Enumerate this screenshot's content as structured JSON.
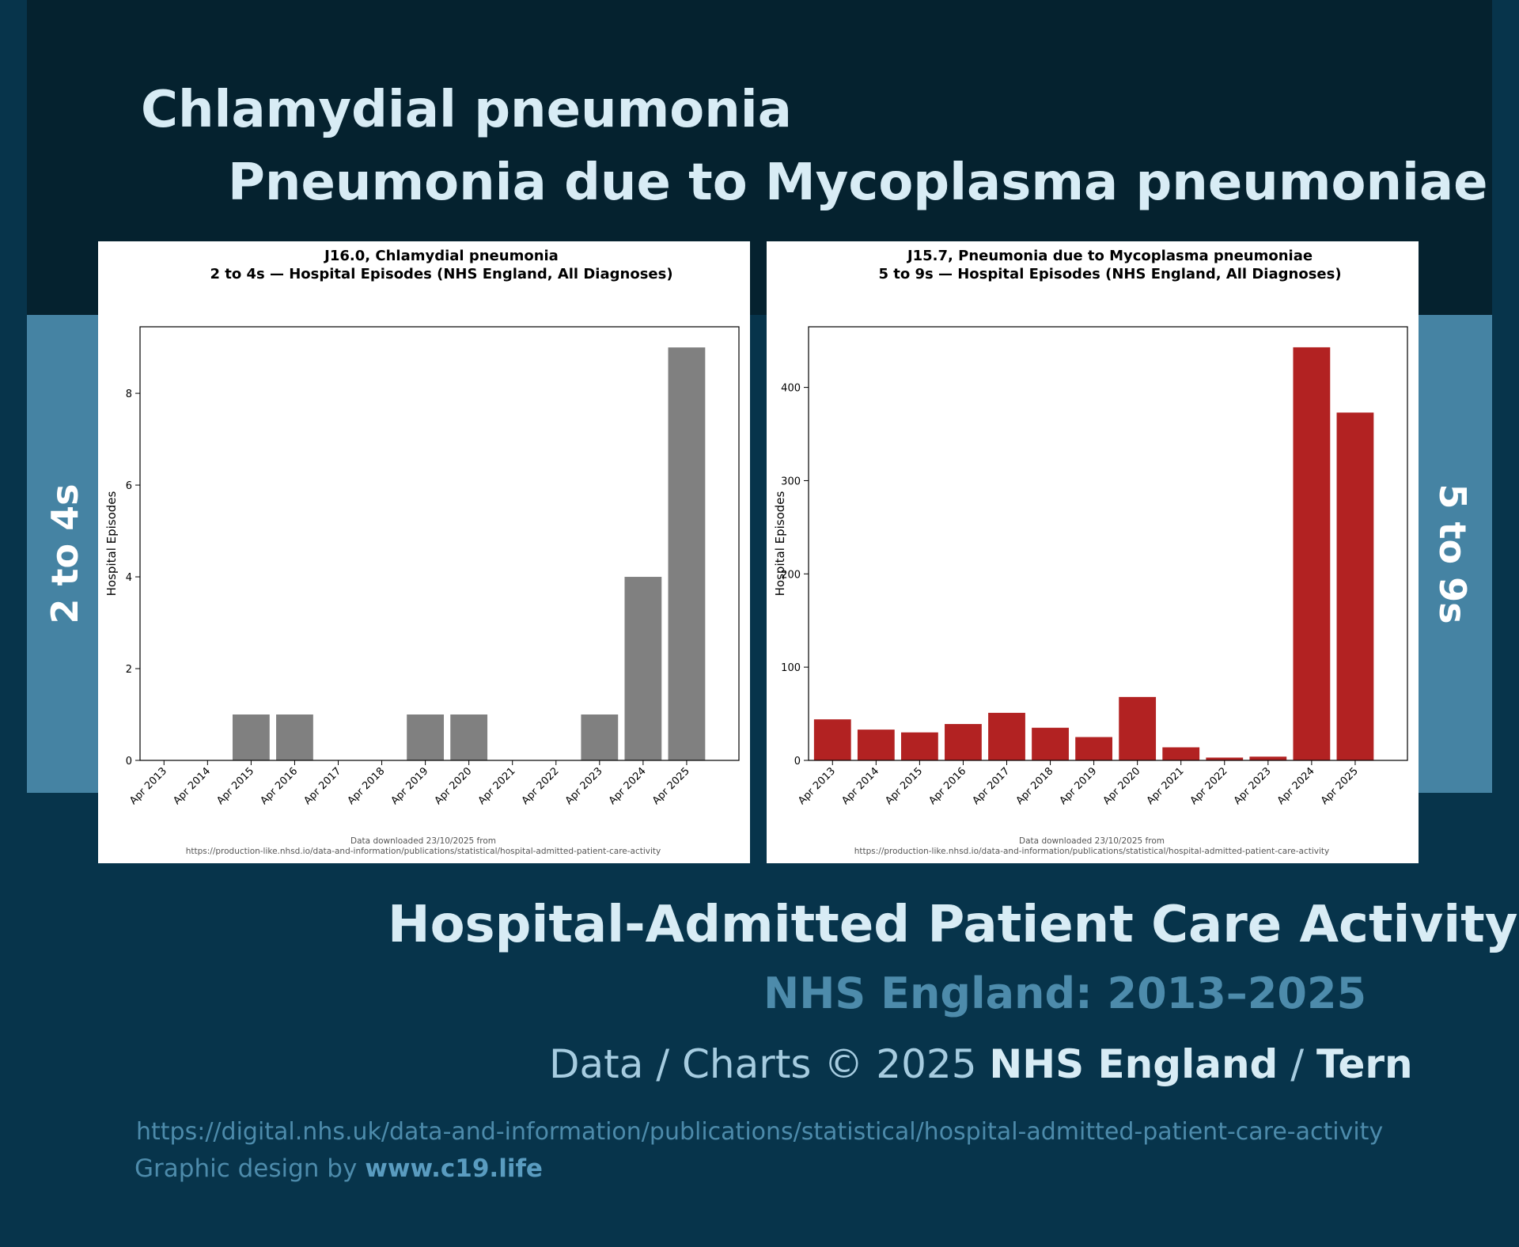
{
  "header": {
    "title_line1": "Chlamydial pneumonia",
    "title_line2": "Pneumonia due to Mycoplasma pneumoniae"
  },
  "side_labels": {
    "left": "2 to 4s",
    "right": "5 to 9s"
  },
  "footer": {
    "title": "Hospital-Admitted Patient Care Activity",
    "range": "NHS England: 2013–2025",
    "credit_prefix": "Data / Charts © 2025",
    "credit_org": "NHS England",
    "credit_sep": "/",
    "credit_author": "Tern",
    "source_url": "https://digital.nhs.uk/data-and-information/publications/statistical/hospital-admitted-patient-care-activity",
    "design_prefix": "Graphic design by",
    "design_site": "www.c19.life"
  },
  "colors": {
    "background": "#07344b",
    "top_band": "#05222f",
    "side_band": "#4583a3",
    "bar_left": "#808080",
    "bar_right": "#b22222"
  },
  "chart_data": [
    {
      "type": "bar",
      "title": "J16.0,  Chlamydial pneumonia",
      "subtitle": "2 to 4s — Hospital Episodes (NHS England, All Diagnoses)",
      "xlabel": "",
      "ylabel": "Hospital Episodes",
      "categories": [
        "Apr 2013",
        "Apr 2014",
        "Apr 2015",
        "Apr 2016",
        "Apr 2017",
        "Apr 2018",
        "Apr 2019",
        "Apr 2020",
        "Apr 2021",
        "Apr 2022",
        "Apr 2023",
        "Apr 2024",
        "Apr 2025"
      ],
      "values": [
        0,
        0,
        1,
        1,
        0,
        0,
        1,
        1,
        0,
        0,
        1,
        4,
        9
      ],
      "ylim": [
        0,
        9.45
      ],
      "yticks": [
        0,
        2,
        4,
        6,
        8
      ],
      "bar_color": "#808080",
      "note_line1": "Data downloaded 23/10/2025 from",
      "note_line2": "https://production-like.nhsd.io/data-and-information/publications/statistical/hospital-admitted-patient-care-activity"
    },
    {
      "type": "bar",
      "title": "J15.7,  Pneumonia due to Mycoplasma pneumoniae",
      "subtitle": "5 to 9s — Hospital Episodes (NHS England, All Diagnoses)",
      "xlabel": "",
      "ylabel": "Hospital Episodes",
      "categories": [
        "Apr 2013",
        "Apr 2014",
        "Apr 2015",
        "Apr 2016",
        "Apr 2017",
        "Apr 2018",
        "Apr 2019",
        "Apr 2020",
        "Apr 2021",
        "Apr 2022",
        "Apr 2023",
        "Apr 2024",
        "Apr 2025"
      ],
      "values": [
        44,
        33,
        30,
        39,
        51,
        35,
        25,
        68,
        14,
        3,
        4,
        443,
        373
      ],
      "ylim": [
        0,
        465
      ],
      "yticks": [
        0,
        100,
        200,
        300,
        400
      ],
      "bar_color": "#b22222",
      "note_line1": "Data downloaded 23/10/2025 from",
      "note_line2": "https://production-like.nhsd.io/data-and-information/publications/statistical/hospital-admitted-patient-care-activity"
    }
  ]
}
